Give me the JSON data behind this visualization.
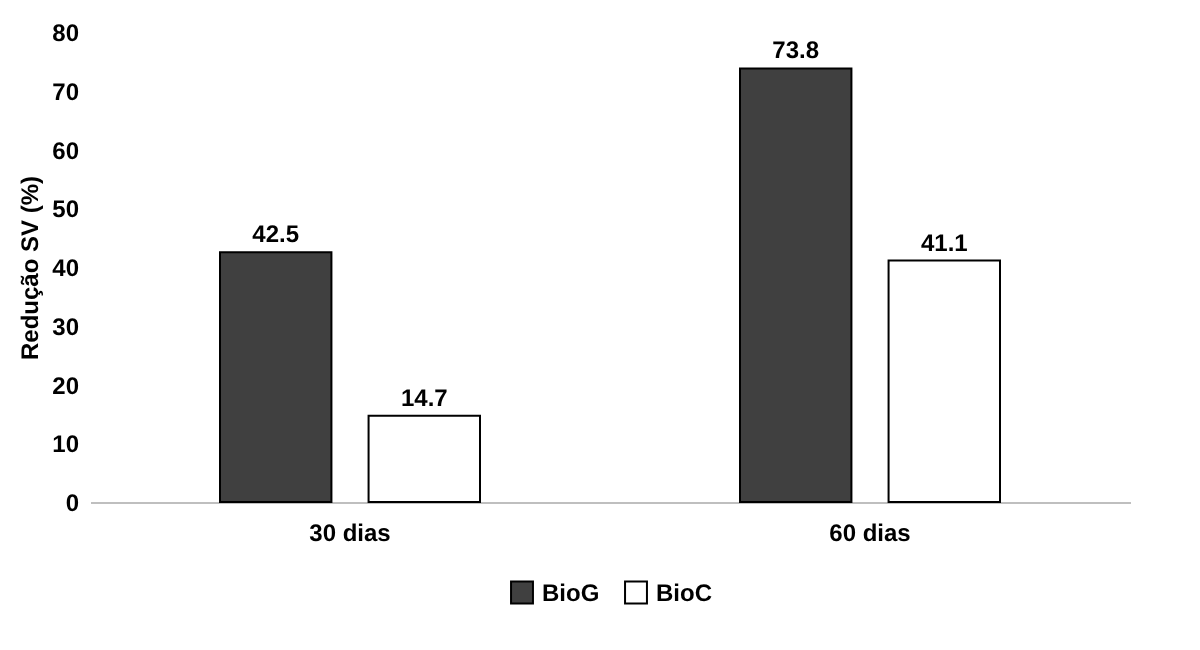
{
  "chart_data": {
    "type": "bar",
    "ylabel": "Redução SV (%)",
    "categories": [
      "30 dias",
      "60 dias"
    ],
    "series": [
      {
        "name": "BioG",
        "color": "#404040",
        "values": [
          42.5,
          73.8
        ]
      },
      {
        "name": "BioC",
        "color": "#ffffff",
        "values": [
          14.7,
          41.1
        ]
      }
    ],
    "ylim": [
      0,
      80
    ],
    "yticks": [
      0,
      10,
      20,
      30,
      40,
      50,
      60,
      70,
      80
    ],
    "grid": false,
    "legend": "bottom",
    "data_labels": true
  }
}
